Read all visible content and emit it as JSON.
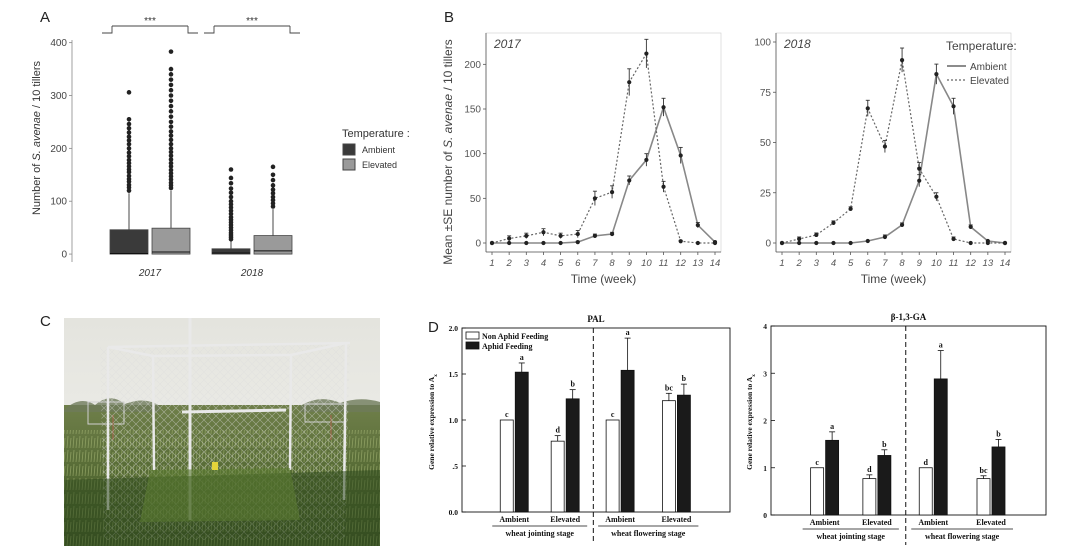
{
  "panels": {
    "A": "A",
    "B": "B",
    "C": "C",
    "D": "D"
  },
  "colors": {
    "ambient": "#3a3a3a",
    "elevated": "#9a9a9a",
    "box_edge": "#555555",
    "bar_black": "#1a1a1a",
    "bar_white": "#ffffff"
  },
  "chart_data": [
    {
      "id": "A",
      "type": "box",
      "ylabel_pre": "Number of ",
      "ylabel_italic": "S. avenae",
      "ylabel_post": " / 10 tillers",
      "ylim": [
        0,
        400
      ],
      "yticks": [
        "0",
        "100",
        "200",
        "300",
        "400"
      ],
      "categories": [
        "2017",
        "2018"
      ],
      "legend": {
        "title": "Temperature :",
        "items": [
          "Ambient",
          "Elevated"
        ]
      },
      "significance": [
        "***",
        "***"
      ],
      "boxes": [
        {
          "year": "2017",
          "group": "Ambient",
          "q1": 0,
          "median": 1,
          "q3": 46,
          "whisker_low": 0,
          "whisker_high": 115,
          "outliers": [
            120,
            126,
            131,
            137,
            142,
            148,
            155,
            160,
            166,
            172,
            178,
            185,
            192,
            200,
            208,
            215,
            222,
            230,
            238,
            246,
            255,
            306
          ]
        },
        {
          "year": "2017",
          "group": "Elevated",
          "q1": 0,
          "median": 4,
          "q3": 49,
          "whisker_low": 0,
          "whisker_high": 120,
          "outliers": [
            125,
            130,
            135,
            141,
            147,
            153,
            159,
            166,
            172,
            179,
            186,
            193,
            200,
            208,
            216,
            224,
            232,
            241,
            250,
            260,
            270,
            280,
            290,
            300,
            310,
            320,
            330,
            340,
            350,
            383
          ]
        },
        {
          "year": "2018",
          "group": "Ambient",
          "q1": 0,
          "median": 2,
          "q3": 10,
          "whisker_low": 0,
          "whisker_high": 24,
          "outliers": [
            28,
            32,
            36,
            40,
            45,
            50,
            55,
            60,
            65,
            70,
            76,
            82,
            88,
            94,
            100,
            108,
            116,
            124,
            134,
            144,
            160
          ]
        },
        {
          "year": "2018",
          "group": "Elevated",
          "q1": 0,
          "median": 6,
          "q3": 35,
          "whisker_low": 0,
          "whisker_high": 85,
          "outliers": [
            90,
            96,
            102,
            108,
            115,
            122,
            130,
            140,
            150,
            165
          ]
        }
      ]
    },
    {
      "id": "B",
      "type": "line",
      "ylabel_pre": "Mean ±SE number of ",
      "ylabel_italic": "S. avenae",
      "ylabel_post": " / 10 tillers",
      "xlabel": "Time (week)",
      "x": [
        1,
        2,
        3,
        4,
        5,
        6,
        7,
        8,
        9,
        10,
        11,
        12,
        13,
        14
      ],
      "legend": {
        "title": "Temperature:",
        "items": [
          "Ambient",
          "Elevated"
        ]
      },
      "plots": [
        {
          "title": "2017",
          "ylim": [
            0,
            225
          ],
          "yticks": [
            "0",
            "50",
            "100",
            "150",
            "200"
          ],
          "series": [
            {
              "name": "Ambient",
              "values": [
                0,
                0,
                0,
                0,
                0,
                1,
                8,
                10,
                70,
                93,
                152,
                98,
                20,
                1
              ],
              "se": [
                0,
                0,
                0,
                0,
                0,
                1,
                2,
                2,
                5,
                7,
                10,
                9,
                3,
                1
              ]
            },
            {
              "name": "Elevated",
              "values": [
                0,
                5,
                8,
                12,
                8,
                10,
                50,
                57,
                180,
                212,
                63,
                2,
                0,
                0
              ],
              "se": [
                0,
                3,
                3,
                4,
                3,
                4,
                8,
                7,
                15,
                16,
                6,
                1,
                0,
                0
              ]
            }
          ]
        },
        {
          "title": "2018",
          "ylim": [
            0,
            100
          ],
          "yticks": [
            "0",
            "25",
            "50",
            "75",
            "100"
          ],
          "series": [
            {
              "name": "Ambient",
              "values": [
                0,
                0,
                0,
                0,
                0,
                1,
                3,
                9,
                31,
                84,
                68,
                8,
                1,
                0
              ],
              "se": [
                0,
                0,
                0,
                0,
                0,
                0,
                1,
                1,
                3,
                5,
                4,
                1,
                0,
                0
              ]
            },
            {
              "name": "Elevated",
              "values": [
                0,
                2,
                4,
                10,
                17,
                67,
                48,
                91,
                37,
                23,
                2,
                0,
                0,
                0
              ],
              "se": [
                0,
                1,
                1,
                1,
                1,
                4,
                3,
                6,
                3,
                2,
                1,
                0,
                0,
                0
              ]
            }
          ]
        }
      ]
    },
    {
      "id": "D",
      "type": "bar",
      "ylabel_pre": "Gene relative expression to A",
      "ylabel_sub": "x",
      "legend": [
        "Non Aphid Feeding",
        "Aphid Feeding"
      ],
      "plots": [
        {
          "title": "PAL",
          "ylim": [
            0,
            2.0
          ],
          "yticks": [
            "0.0",
            ".5",
            "1.0",
            "1.5",
            "2.0"
          ],
          "categories": [
            "Ambient",
            "Elevated",
            "Ambient",
            "Elevated"
          ],
          "stages": [
            "wheat jointing stage",
            "wheat flowering stage"
          ],
          "series": [
            {
              "name": "Non Aphid Feeding",
              "values": [
                1.0,
                0.77,
                1.0,
                1.21
              ],
              "err": [
                0,
                0.06,
                0,
                0.08
              ],
              "letters": [
                "c",
                "d",
                "c",
                "bc"
              ]
            },
            {
              "name": "Aphid Feeding",
              "values": [
                1.52,
                1.23,
                1.54,
                1.27
              ],
              "err": [
                0.1,
                0.1,
                0.35,
                0.12
              ],
              "letters": [
                "a",
                "b",
                "a",
                "b"
              ]
            }
          ]
        },
        {
          "title": "β-1,3-GA",
          "ylim": [
            0,
            4
          ],
          "yticks": [
            "0",
            "1",
            "2",
            "3",
            "4"
          ],
          "categories": [
            "Ambient",
            "Elevated",
            "Ambient",
            "Elevated"
          ],
          "stages": [
            "wheat jointing stage",
            "wheat flowering stage"
          ],
          "series": [
            {
              "name": "Non Aphid Feeding",
              "values": [
                1.0,
                0.77,
                1.0,
                0.77
              ],
              "err": [
                0,
                0.08,
                0,
                0.06
              ],
              "letters": [
                "c",
                "d",
                "d",
                "bc"
              ]
            },
            {
              "name": "Aphid Feeding",
              "values": [
                1.58,
                1.26,
                2.88,
                1.44
              ],
              "err": [
                0.18,
                0.12,
                0.6,
                0.16
              ],
              "letters": [
                "a",
                "b",
                "a",
                "b"
              ]
            }
          ]
        }
      ]
    }
  ]
}
